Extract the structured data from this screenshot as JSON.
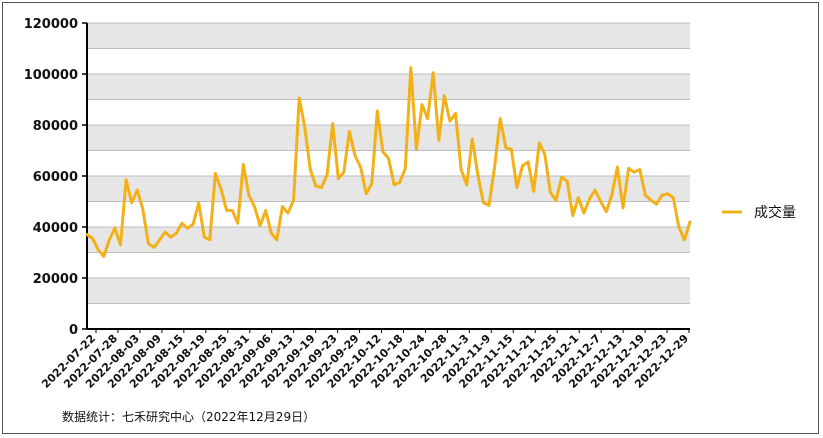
{
  "chart_data": {
    "type": "line",
    "ylim": [
      0,
      120000
    ],
    "y_ticks": [
      "0",
      "20000",
      "40000",
      "60000",
      "80000",
      "100000",
      "120000"
    ],
    "x_labels": [
      "2022-07-22",
      "2022-07-28",
      "2022-08-03",
      "2022-08-09",
      "2022-08-15",
      "2022-08-19",
      "2022-08-25",
      "2022-08-31",
      "2022-09-06",
      "2022-09-13",
      "2022-09-19",
      "2022-09-23",
      "2022-09-29",
      "2022-10-12",
      "2022-10-18",
      "2022-10-24",
      "2022-10-28",
      "2022-11-3",
      "2022-11-9",
      "2022-11-15",
      "2022-11-21",
      "2022-11-25",
      "2022-12-1",
      "2022-12-7",
      "2022-12-13",
      "2022-12-19",
      "2022-12-23",
      "2022-12-29"
    ],
    "grid": true,
    "legend_position": "right",
    "series": [
      {
        "name": "成交量",
        "color": "#F2B019",
        "values": [
          37000,
          35500,
          31000,
          28500,
          35000,
          39500,
          33000,
          58500,
          49500,
          54500,
          47000,
          33500,
          32000,
          35000,
          38000,
          36000,
          37500,
          41500,
          39500,
          41000,
          49500,
          36000,
          35000,
          61000,
          55000,
          46500,
          46500,
          41500,
          64500,
          52500,
          48000,
          40500,
          46500,
          37500,
          35000,
          48000,
          45500,
          50500,
          90500,
          79000,
          62500,
          56000,
          55500,
          60500,
          80500,
          59000,
          61500,
          77500,
          68000,
          63500,
          53000,
          57000,
          85500,
          69500,
          67000,
          56500,
          57500,
          63000,
          102500,
          70500,
          88000,
          82500,
          100500,
          74000,
          91500,
          81500,
          84500,
          62500,
          56500,
          74500,
          60500,
          49500,
          48500,
          63500,
          82500,
          71000,
          70500,
          55500,
          64000,
          65500,
          54000,
          73000,
          68500,
          53500,
          50500,
          59500,
          58000,
          44500,
          51500,
          45500,
          51000,
          54500,
          50000,
          46000,
          52500,
          63500,
          47500,
          63000,
          61500,
          62500,
          52500,
          50500,
          49000,
          52500,
          53000,
          51500,
          40000,
          35000,
          42000
        ]
      }
    ]
  },
  "footer": {
    "source": "数据统计：七禾研究中心（2022年12月29日）"
  }
}
